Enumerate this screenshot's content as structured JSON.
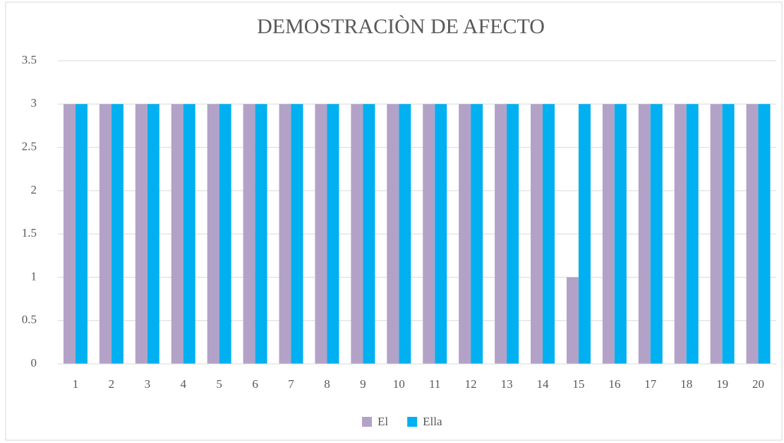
{
  "chart_data": {
    "type": "bar",
    "title": "DEMOSTRACIÒN DE AFECTO",
    "categories": [
      "1",
      "2",
      "3",
      "4",
      "5",
      "6",
      "7",
      "8",
      "9",
      "10",
      "11",
      "12",
      "13",
      "14",
      "15",
      "16",
      "17",
      "18",
      "19",
      "20"
    ],
    "series": [
      {
        "name": "El",
        "color": "#b3a2c7",
        "values": [
          3,
          3,
          3,
          3,
          3,
          3,
          3,
          3,
          3,
          3,
          3,
          3,
          3,
          3,
          1,
          3,
          3,
          3,
          3,
          3
        ]
      },
      {
        "name": "Ella",
        "color": "#00b0f0",
        "values": [
          3,
          3,
          3,
          3,
          3,
          3,
          3,
          3,
          3,
          3,
          3,
          3,
          3,
          3,
          3,
          3,
          3,
          3,
          3,
          3
        ]
      }
    ],
    "ylim": [
      0,
      3.5
    ],
    "yticks": [
      0,
      0.5,
      1,
      1.5,
      2,
      2.5,
      3,
      3.5
    ],
    "grid": true,
    "legend": "bottom"
  }
}
